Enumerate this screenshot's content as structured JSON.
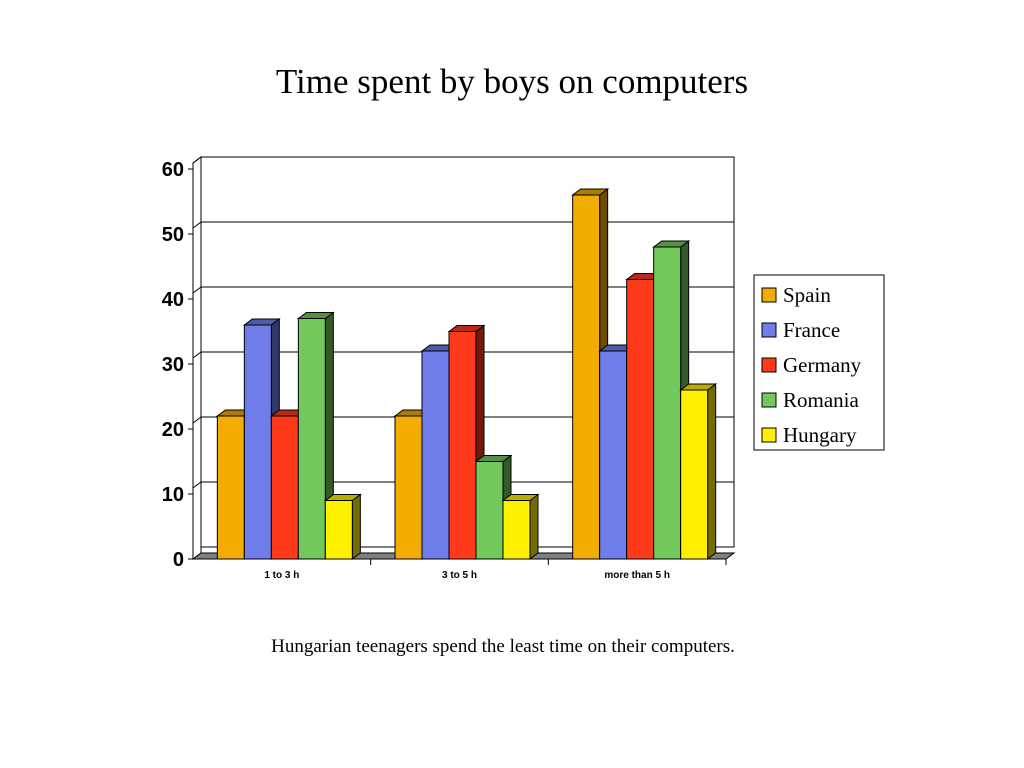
{
  "slide": {
    "title": "Time spent by boys on computers",
    "caption": "Hungarian teenagers spend the least time on their computers."
  },
  "chart_data": {
    "type": "bar",
    "style": "3d-clustered-column",
    "title": "Time spent by boys on computers",
    "xlabel": "",
    "ylabel": "",
    "categories": [
      "1 to 3 h",
      "3 to 5 h",
      "more than 5 h"
    ],
    "ylim": [
      0,
      60
    ],
    "yticks": [
      0,
      10,
      20,
      30,
      40,
      50,
      60
    ],
    "grid": true,
    "legend_position": "right",
    "series": [
      {
        "name": "Spain",
        "color": "#F2AD00",
        "values": [
          22,
          22,
          56
        ]
      },
      {
        "name": "France",
        "color": "#6F7DEB",
        "values": [
          36,
          32,
          32
        ]
      },
      {
        "name": "Germany",
        "color": "#FF3A1A",
        "values": [
          22,
          35,
          43
        ]
      },
      {
        "name": "Romania",
        "color": "#73C85C",
        "values": [
          37,
          15,
          48
        ]
      },
      {
        "name": "Hungary",
        "color": "#FFF000",
        "values": [
          9,
          9,
          26
        ]
      }
    ]
  }
}
